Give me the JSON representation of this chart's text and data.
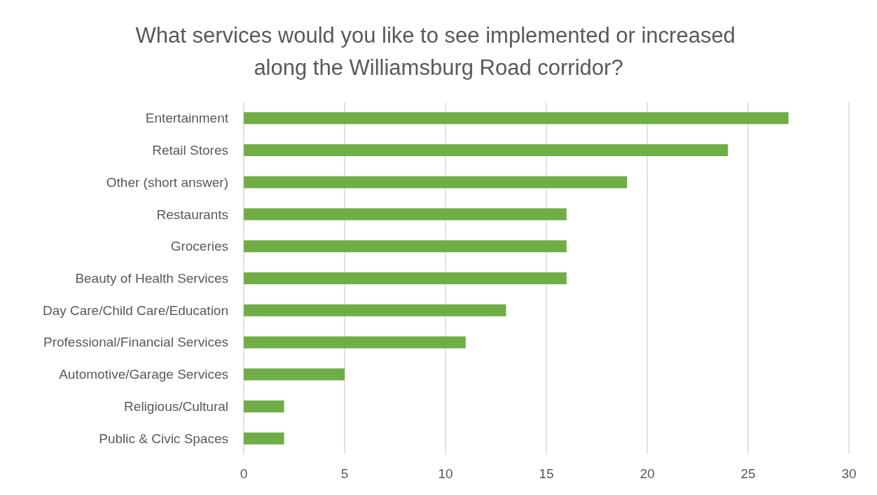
{
  "chart_data": {
    "type": "bar",
    "orientation": "horizontal",
    "title": "What services would you like to see implemented or increased along the Williamsburg Road corridor?",
    "categories": [
      "Entertainment",
      "Retail Stores",
      "Other (short answer)",
      "Restaurants",
      "Groceries",
      "Beauty of Health Services",
      "Day Care/Child Care/Education",
      "Professional/Financial Services",
      "Automotive/Garage Services",
      "Religious/Cultural",
      "Public & Civic Spaces"
    ],
    "values": [
      27,
      24,
      19,
      16,
      16,
      16,
      13,
      11,
      5,
      2,
      2
    ],
    "color": "#70ad47",
    "xlim": [
      0,
      30
    ],
    "xticks": [
      0,
      5,
      10,
      15,
      20,
      25,
      30
    ],
    "grid": "x"
  }
}
